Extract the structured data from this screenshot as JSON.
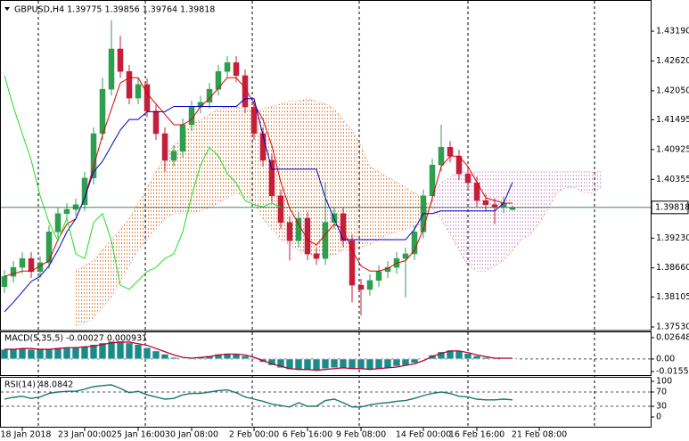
{
  "chart_data": [
    {
      "type": "candlestick",
      "title": "GBPUSD,H4  1.39775 1.39856 1.39764 1.39818",
      "categories": [
        null,
        null,
        "18 Jan 2018",
        null,
        null,
        null,
        null,
        null,
        null,
        "23 Jan 00:00",
        null,
        null,
        null,
        null,
        null,
        "25 Jan 16:00",
        null,
        null,
        null,
        null,
        null,
        "30 Jan 08:00",
        null,
        null,
        null,
        null,
        null,
        null,
        "2 Feb 00:00",
        null,
        null,
        null,
        null,
        null,
        "6 Feb 16:00",
        null,
        null,
        null,
        null,
        null,
        "9 Feb 08:00",
        null,
        null,
        null,
        null,
        null,
        null,
        "14 Feb 00:00",
        null,
        null,
        null,
        null,
        null,
        "16 Feb 16:00",
        null,
        null,
        null,
        null,
        null,
        null,
        "21 Feb 08:00",
        null,
        null,
        null,
        null,
        null,
        null,
        null
      ],
      "open": [
        1.383,
        1.385,
        1.3867,
        1.3884,
        1.3859,
        1.3876,
        1.3935,
        1.397,
        1.3978,
        1.3987,
        1.4038,
        1.4123,
        1.4208,
        1.4285,
        1.4242,
        1.4191,
        1.4217,
        1.4166,
        1.4123,
        1.4072,
        1.4089,
        1.414,
        1.4174,
        1.4183,
        1.4208,
        1.4242,
        1.4259,
        1.4234,
        1.4174,
        1.4123,
        1.4072,
        1.4004,
        1.3953,
        1.3918,
        1.3961,
        1.3893,
        1.3884,
        1.3953,
        1.397,
        1.3918,
        1.3833,
        1.3825,
        1.3842,
        1.3859,
        1.3867,
        1.3884,
        1.3893,
        1.3935,
        1.4004,
        1.4063,
        1.4097,
        1.408,
        1.4046,
        1.4029,
        1.3995,
        1.3987,
        1.3983,
        1.39775,
        null,
        null,
        null,
        null,
        null,
        null,
        null,
        null,
        null,
        null
      ],
      "high": [
        1.3862,
        1.3879,
        1.3896,
        1.3896,
        1.3888,
        1.3947,
        1.3982,
        1.399,
        1.3999,
        1.405,
        1.4135,
        1.423,
        1.434,
        1.431,
        1.4254,
        1.4229,
        1.4229,
        1.4178,
        1.4135,
        1.4101,
        1.4152,
        1.4186,
        1.4195,
        1.422,
        1.4254,
        1.4271,
        1.4271,
        1.4246,
        1.4186,
        1.4135,
        1.4084,
        1.4016,
        1.3965,
        1.3973,
        1.3973,
        1.3905,
        1.403,
        1.3982,
        1.3982,
        1.393,
        1.3845,
        1.3854,
        1.3871,
        1.3879,
        1.3896,
        1.3905,
        1.3947,
        1.4016,
        1.4075,
        1.414,
        1.4109,
        1.4092,
        1.4058,
        1.4041,
        1.4007,
        1.3999,
        1.4002,
        1.39856,
        null,
        null,
        null,
        null,
        null,
        null,
        null,
        null,
        null,
        null
      ],
      "low": [
        1.3818,
        1.3838,
        1.3855,
        1.3847,
        1.3847,
        1.3864,
        1.3923,
        1.3958,
        1.3966,
        1.3975,
        1.4026,
        1.4111,
        1.4196,
        1.423,
        1.4179,
        1.4179,
        1.4154,
        1.4111,
        1.405,
        1.406,
        1.4077,
        1.4128,
        1.4162,
        1.4171,
        1.4196,
        1.423,
        1.4222,
        1.4162,
        1.4111,
        1.406,
        1.3992,
        1.3941,
        1.388,
        1.3906,
        1.3881,
        1.3872,
        1.3872,
        1.3941,
        1.3906,
        1.38,
        1.3775,
        1.3813,
        1.383,
        1.3847,
        1.3855,
        1.381,
        1.3881,
        1.3923,
        1.3992,
        1.4051,
        1.4068,
        1.4034,
        1.4017,
        1.3983,
        1.3975,
        1.395,
        1.3971,
        1.39764,
        null,
        null,
        null,
        null,
        null,
        null,
        null,
        null,
        null,
        null
      ],
      "close": [
        1.385,
        1.3867,
        1.3884,
        1.3859,
        1.3876,
        1.3935,
        1.397,
        1.3978,
        1.3987,
        1.4038,
        1.4123,
        1.4208,
        1.4285,
        1.4242,
        1.4191,
        1.4217,
        1.4166,
        1.4123,
        1.4072,
        1.4089,
        1.414,
        1.4174,
        1.4183,
        1.4208,
        1.4242,
        1.4259,
        1.4234,
        1.4174,
        1.4123,
        1.4072,
        1.4004,
        1.3953,
        1.3918,
        1.3961,
        1.3893,
        1.3884,
        1.3953,
        1.397,
        1.3918,
        1.3833,
        1.3825,
        1.3842,
        1.3859,
        1.3867,
        1.3884,
        1.3893,
        1.3935,
        1.4004,
        1.4063,
        1.4097,
        1.408,
        1.4046,
        1.4029,
        1.3995,
        1.3987,
        1.3983,
        1.399,
        1.39818,
        null,
        null,
        null,
        null,
        null,
        null,
        null,
        null,
        null,
        null
      ],
      "up_color": "#2e9e4f",
      "down_color": "#c41e3a",
      "lines": [
        {
          "color": "#e00000",
          "values": [
            1.385,
            1.3855,
            1.386,
            1.386,
            1.387,
            1.388,
            1.392,
            1.395,
            1.396,
            1.4,
            1.406,
            1.412,
            1.417,
            1.422,
            1.423,
            1.423,
            1.42,
            1.418,
            1.416,
            1.414,
            1.414,
            1.415,
            1.4175,
            1.419,
            1.421,
            1.423,
            1.423,
            1.421,
            1.418,
            1.415,
            1.41,
            1.403,
            1.398,
            1.395,
            1.392,
            1.391,
            1.393,
            1.395,
            1.394,
            1.39,
            1.387,
            1.386,
            1.386,
            1.3865,
            1.3875,
            1.388,
            1.39,
            1.394,
            1.4,
            1.406,
            1.408,
            1.408,
            1.406,
            1.403,
            1.4,
            1.3995,
            1.399,
            1.399,
            null,
            null,
            null,
            null,
            null,
            null,
            null,
            null,
            null,
            null
          ]
        },
        {
          "color": "#0000c8",
          "values": [
            1.3782,
            1.38,
            1.382,
            1.384,
            1.385,
            1.387,
            1.39,
            1.3935,
            1.396,
            1.4,
            1.405,
            1.407,
            1.41,
            1.413,
            1.415,
            1.415,
            1.4165,
            1.4165,
            1.4165,
            1.4175,
            1.4175,
            1.4175,
            1.4175,
            1.4175,
            1.4175,
            1.4175,
            1.4175,
            1.419,
            1.419,
            1.412,
            1.4055,
            1.4055,
            1.4055,
            1.4055,
            1.4055,
            1.4055,
            1.4,
            1.396,
            1.392,
            1.392,
            1.392,
            1.392,
            1.392,
            1.392,
            1.392,
            1.392,
            1.394,
            1.397,
            1.397,
            1.3975,
            1.3975,
            1.3975,
            1.3975,
            1.3975,
            1.3975,
            1.3975,
            1.399,
            1.403,
            null,
            null,
            null,
            null,
            null,
            null,
            null,
            null,
            null,
            null
          ]
        },
        {
          "color": "#22dd22",
          "values": [
            1.4234,
            1.4174,
            1.4123,
            1.4072,
            1.4004,
            1.3953,
            1.3918,
            1.3961,
            1.3893,
            1.3884,
            1.3953,
            1.397,
            1.3918,
            1.3833,
            1.3825,
            1.3842,
            1.3859,
            1.3867,
            1.3884,
            1.3893,
            1.3935,
            1.4004,
            1.4063,
            1.4097,
            1.408,
            1.4046,
            1.4029,
            1.3995,
            1.3987,
            1.3983,
            1.399,
            1.3982,
            null,
            null,
            null,
            null,
            null,
            null,
            null,
            null,
            null,
            null,
            null,
            null,
            null,
            null,
            null,
            null,
            null,
            null,
            null,
            null,
            null,
            null,
            null,
            null,
            null,
            null,
            null,
            null,
            null,
            null,
            null,
            null,
            null,
            null,
            null,
            null
          ]
        }
      ],
      "cloud": {
        "span_a": [
          null,
          null,
          null,
          null,
          null,
          null,
          null,
          null,
          1.386,
          1.387,
          1.388,
          1.39,
          1.392,
          1.394,
          1.396,
          1.399,
          1.402,
          1.405,
          1.408,
          1.41,
          1.412,
          1.414,
          1.415,
          1.416,
          1.417,
          1.4175,
          1.4175,
          1.417,
          1.4165,
          1.417,
          1.4175,
          1.418,
          1.4185,
          1.4185,
          1.419,
          1.4185,
          1.418,
          1.417,
          1.415,
          1.413,
          1.41,
          1.406,
          1.405,
          1.404,
          1.403,
          1.402,
          1.401,
          1.4,
          1.398,
          1.396,
          1.393,
          1.39,
          1.387,
          1.386,
          1.386,
          1.387,
          1.388,
          1.39,
          1.392,
          1.393,
          1.395,
          1.398,
          1.401,
          1.402,
          1.402,
          1.401,
          1.401,
          1.402
        ],
        "span_b": [
          null,
          null,
          null,
          null,
          null,
          null,
          null,
          null,
          1.3756,
          1.376,
          1.377,
          1.379,
          1.381,
          1.384,
          1.387,
          1.39,
          1.392,
          1.394,
          1.396,
          1.397,
          1.397,
          1.397,
          1.3975,
          1.398,
          1.399,
          1.4,
          1.401,
          1.4,
          1.399,
          1.396,
          1.394,
          1.392,
          1.391,
          1.39,
          1.389,
          1.389,
          1.389,
          1.389,
          1.39,
          1.39,
          1.3905,
          1.391,
          1.392,
          1.393,
          1.3935,
          1.394,
          1.3945,
          1.395,
          1.4,
          1.403,
          1.404,
          1.405,
          1.405,
          1.405,
          1.405,
          1.405,
          1.405,
          1.405,
          1.405,
          1.405,
          1.405,
          1.405,
          1.405,
          1.405,
          1.405,
          1.405,
          1.405,
          1.405
        ],
        "up_color": "#e0925a",
        "down_color": "#d7a3d7"
      },
      "ylim": [
        1.37479,
        1.43736
      ],
      "yticks": [
        {
          "value": 1.4319,
          "label": "1.43190"
        },
        {
          "value": 1.4262,
          "label": "1.42620"
        },
        {
          "value": 1.4205,
          "label": "1.42050"
        },
        {
          "value": 1.41495,
          "label": "1.41495"
        },
        {
          "value": 1.40925,
          "label": "1.40925"
        },
        {
          "value": 1.40355,
          "label": "1.40355"
        },
        {
          "value": 1.3923,
          "label": "1.39230"
        },
        {
          "value": 1.3866,
          "label": "1.38660"
        },
        {
          "value": 1.38105,
          "label": "1.38105"
        },
        {
          "value": 1.3753,
          "label": "1.37530"
        }
      ],
      "last_price": 1.39818,
      "last_price_color": "#2f6f4f"
    },
    {
      "type": "macd",
      "label": "MACD(5,35,5) -0.00027 0.000931",
      "values": [
        0.012,
        0.013,
        0.013,
        0.012,
        0.012,
        0.013,
        0.014,
        0.014,
        0.015,
        0.016,
        0.018,
        0.02,
        0.022,
        0.022,
        0.02,
        0.018,
        0.014,
        0.01,
        0.006,
        0.002,
        0.0,
        0.001,
        0.002,
        0.004,
        0.006,
        0.007,
        0.006,
        0.004,
        0.001,
        -0.004,
        -0.008,
        -0.011,
        -0.013,
        -0.013,
        -0.014,
        -0.014,
        -0.012,
        -0.011,
        -0.011,
        -0.012,
        -0.013,
        -0.013,
        -0.012,
        -0.011,
        -0.009,
        -0.008,
        -0.005,
        0.0,
        0.005,
        0.009,
        0.011,
        0.01,
        0.007,
        0.004,
        0.002,
        0.001,
        0.0,
        -0.0003
      ],
      "color": "#1a8a8a",
      "signal": {
        "color": "#c00030",
        "values": [
          0.012,
          0.012,
          0.013,
          0.013,
          0.012,
          0.012,
          0.013,
          0.014,
          0.014,
          0.015,
          0.016,
          0.018,
          0.02,
          0.021,
          0.021,
          0.019,
          0.017,
          0.013,
          0.009,
          0.005,
          0.002,
          0.001,
          0.002,
          0.003,
          0.005,
          0.006,
          0.006,
          0.005,
          0.002,
          -0.002,
          -0.006,
          -0.009,
          -0.012,
          -0.013,
          -0.013,
          -0.014,
          -0.013,
          -0.012,
          -0.011,
          -0.012,
          -0.012,
          -0.013,
          -0.012,
          -0.011,
          -0.01,
          -0.008,
          -0.006,
          -0.002,
          0.003,
          0.007,
          0.01,
          0.01,
          0.008,
          0.005,
          0.003,
          0.001,
          0.001,
          0.0009
        ]
      },
      "ylim": [
        -0.01557,
        0.026481
      ],
      "yticks": [
        0.026481,
        {
          "value": 0,
          "label": "0.00"
        },
        -0.01557
      ],
      "levels": [
        0
      ]
    },
    {
      "type": "line",
      "label": "RSI(14) 48.0842",
      "values": [
        50,
        55,
        58,
        52,
        56,
        66,
        70,
        72,
        72,
        78,
        85,
        88,
        90,
        80,
        68,
        72,
        62,
        56,
        50,
        52,
        62,
        66,
        66,
        70,
        74,
        76,
        68,
        56,
        50,
        44,
        36,
        32,
        28,
        40,
        30,
        30,
        46,
        50,
        40,
        28,
        28,
        34,
        38,
        40,
        44,
        46,
        52,
        60,
        66,
        70,
        66,
        58,
        56,
        50,
        48,
        48,
        50,
        48
      ],
      "color": "#1a7a6a",
      "ylim": [
        0,
        100
      ],
      "yticks": [
        100,
        70,
        30,
        0
      ],
      "levels": [
        70,
        30
      ]
    }
  ]
}
